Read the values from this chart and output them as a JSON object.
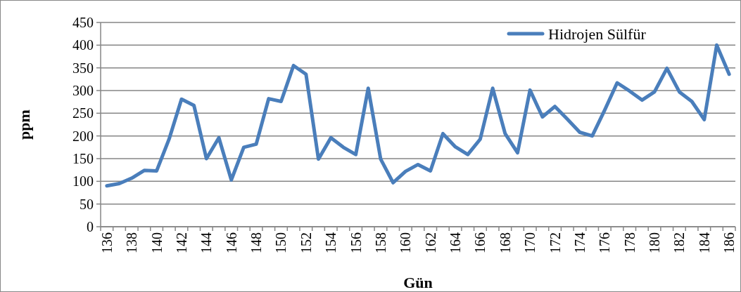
{
  "chart_data": {
    "type": "line",
    "xlabel": "Gün",
    "ylabel": "ppm",
    "categories": [
      "136",
      null,
      "138",
      null,
      "140",
      null,
      "142",
      null,
      "144",
      null,
      "146",
      null,
      "148",
      null,
      "150",
      null,
      "152",
      null,
      "154",
      null,
      "156",
      null,
      "158",
      null,
      "160",
      null,
      "162",
      null,
      "164",
      null,
      "166",
      null,
      "168",
      null,
      "170",
      null,
      "172",
      null,
      "174",
      null,
      "176",
      null,
      "178",
      null,
      "180",
      null,
      "182",
      null,
      "184",
      null,
      "186"
    ],
    "series": [
      {
        "name": "Hidrojen Sülfür",
        "color": "#4a7ebb",
        "values": [
          90,
          95,
          107,
          124,
          123,
          193,
          281,
          267,
          150,
          196,
          103,
          175,
          182,
          282,
          276,
          355,
          336,
          149,
          196,
          175,
          159,
          305,
          149,
          97,
          122,
          137,
          123,
          205,
          176,
          159,
          193,
          305,
          205,
          163,
          301,
          242,
          265,
          237,
          208,
          200,
          257,
          317,
          299,
          279,
          297,
          349,
          297,
          276,
          236,
          400,
          336
        ]
      }
    ],
    "ylim": [
      0,
      450
    ],
    "yticks": [
      0,
      50,
      100,
      150,
      200,
      250,
      300,
      350,
      400,
      450
    ],
    "grid": "y",
    "legend": "top right",
    "line_style": "solid",
    "marker": "none"
  }
}
